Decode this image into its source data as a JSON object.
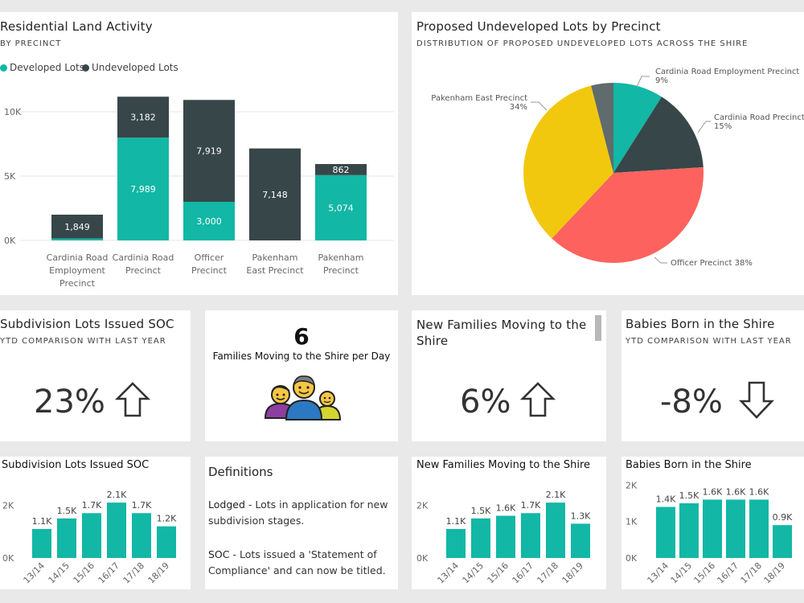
{
  "colors": {
    "teal": "#12b7a5",
    "dark": "#374649",
    "yellow": "#f2c80f",
    "red": "#fd625e",
    "gray": "#5f6b6d",
    "bg": "#e9e9e9"
  },
  "tile1": {
    "title": "Residential Land Activity",
    "subtitle": "BY PRECINCT",
    "legend": [
      "Developed Lots",
      "Undeveloped Lots"
    ]
  },
  "tile2": {
    "title": "Proposed Undeveloped Lots by Precinct",
    "subtitle": "DISTRIBUTION OF PROPOSED UNDEVELOPED LOTS ACROSS THE SHIRE"
  },
  "kpi_soc": {
    "title": "Subdivision Lots Issued SOC",
    "subtitle": "YTD COMPARISON WITH LAST YEAR",
    "value": "23%",
    "arrow_icon": "arrow-up-icon"
  },
  "families_day": {
    "number": "6",
    "label": "Families Moving to the Shire per Day",
    "icon": "family-icon"
  },
  "kpi_families": {
    "title": "New Families Moving to the Shire",
    "value": "6%",
    "arrow_icon": "arrow-up-icon"
  },
  "kpi_babies": {
    "title": "Babies Born in the Shire",
    "subtitle": "YTD COMPARISON WITH LAST YEAR",
    "value": "-8%",
    "arrow_icon": "arrow-down-icon"
  },
  "bottom_soc": {
    "title": "Subdivision Lots Issued SOC"
  },
  "definitions": {
    "title": "Definitions",
    "lodged_term": "Lodged",
    "lodged_text": " - Lots in application for new subdivision stages.",
    "soc_term": "SOC",
    "soc_text": " - Lots issued a 'Statement of Compliance' and can now be titled."
  },
  "bottom_families": {
    "title": "New Families Moving to the Shire"
  },
  "bottom_babies": {
    "title": "Babies Born in the Shire"
  },
  "chart_data": [
    {
      "type": "bar",
      "stacked": true,
      "categories": [
        "Cardinia Road Employment Precinct",
        "Cardinia Road Precinct",
        "Officer Precinct",
        "Pakenham East Precinct",
        "Pakenham Precinct"
      ],
      "category_lines": [
        [
          "Cardinia Road",
          "Employment",
          "Precinct"
        ],
        [
          "Cardinia Road",
          "Precinct"
        ],
        [
          "Officer",
          "Precinct"
        ],
        [
          "Pakenham",
          "East Precinct"
        ],
        [
          "Pakenham",
          "Precinct"
        ]
      ],
      "series": [
        {
          "name": "Developed Lots",
          "values": [
            150,
            7989,
            3000,
            0,
            5074
          ],
          "labels": [
            "",
            "7,989",
            "3,000",
            "",
            "5,074"
          ]
        },
        {
          "name": "Undeveloped Lots",
          "values": [
            1849,
            3182,
            7919,
            7148,
            862
          ],
          "labels": [
            "1,849",
            "3,182",
            "7,919",
            "7,148",
            "862"
          ]
        }
      ],
      "yticks": [
        0,
        5000,
        10000
      ],
      "ytick_labels": [
        "0K",
        "5K",
        "10K"
      ],
      "ylim": [
        0,
        12000
      ],
      "legend": "top-left"
    },
    {
      "type": "pie",
      "slices": [
        {
          "label": "Cardinia Road Employment Precinct",
          "pct_label": "9%",
          "value": 9
        },
        {
          "label": "Cardinia Road Precinct",
          "pct_label": "15%",
          "value": 15
        },
        {
          "label": "Officer Precinct",
          "pct_label": "38%",
          "value": 38
        },
        {
          "label": "Pakenham East Precinct",
          "pct_label": "34%",
          "value": 34
        },
        {
          "label": "",
          "pct_label": "",
          "value": 4
        }
      ]
    },
    {
      "type": "bar",
      "categories": [
        "13/14",
        "14/15",
        "15/16",
        "16/17",
        "17/18",
        "18/19"
      ],
      "values": [
        1100,
        1500,
        1700,
        2100,
        1700,
        1200
      ],
      "labels": [
        "1.1K",
        "1.5K",
        "1.7K",
        "2.1K",
        "1.7K",
        "1.2K"
      ],
      "yticks": [
        0,
        2000
      ],
      "ytick_labels": [
        "0K",
        "2K"
      ],
      "ylim": [
        0,
        2500
      ]
    },
    {
      "type": "bar",
      "categories": [
        "13/14",
        "14/15",
        "15/16",
        "16/17",
        "17/18",
        "18/19"
      ],
      "values": [
        1100,
        1500,
        1600,
        1700,
        2100,
        1300
      ],
      "labels": [
        "1.1K",
        "1.5K",
        "1.6K",
        "1.7K",
        "2.1K",
        "1.3K"
      ],
      "yticks": [
        0,
        2000
      ],
      "ytick_labels": [
        "0K",
        "2K"
      ],
      "ylim": [
        0,
        2500
      ]
    },
    {
      "type": "bar",
      "categories": [
        "13/14",
        "14/15",
        "15/16",
        "16/17",
        "17/18",
        "18/19"
      ],
      "values": [
        1400,
        1500,
        1600,
        1600,
        1600,
        900
      ],
      "labels": [
        "1.4K",
        "1.5K",
        "1.6K",
        "1.6K",
        "1.6K",
        "0.9K"
      ],
      "yticks": [
        0,
        1000,
        2000
      ],
      "ytick_labels": [
        "0K",
        "1K",
        "2K"
      ],
      "ylim": [
        0,
        2050
      ]
    }
  ]
}
